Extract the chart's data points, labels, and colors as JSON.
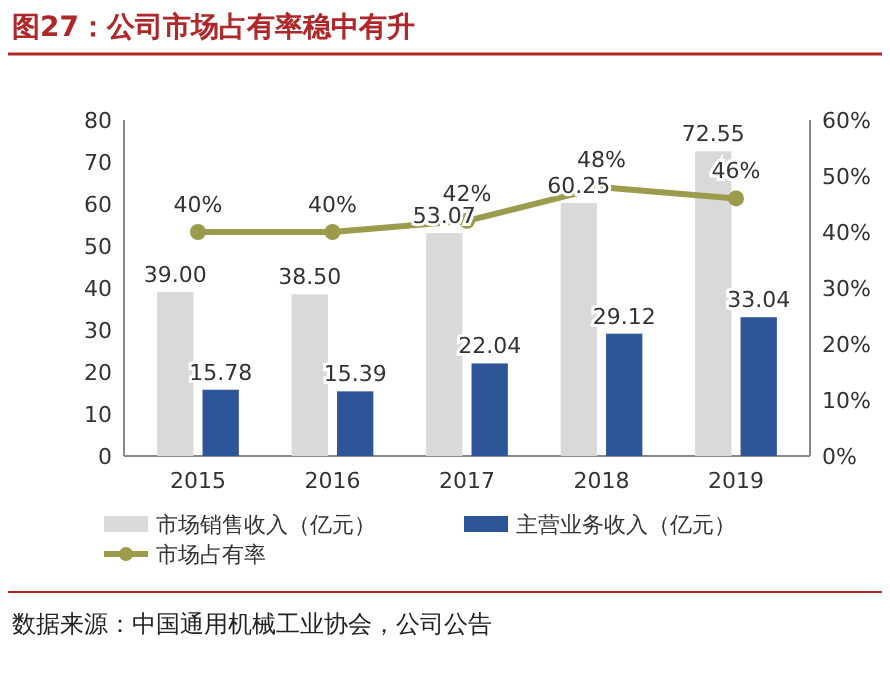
{
  "chart_data": {
    "type": "bar",
    "title": "图27：公司市场占有率稳中有升",
    "categories": [
      "2015",
      "2016",
      "2017",
      "2018",
      "2019"
    ],
    "series": [
      {
        "name": "市场销售收入（亿元）",
        "color": "#d9d9d9",
        "values": [
          39.0,
          38.5,
          53.07,
          60.25,
          72.55
        ],
        "value_labels": [
          "39.00",
          "38.50",
          "53.07",
          "60.25",
          "72.55"
        ]
      },
      {
        "name": "主营业务收入（亿元）",
        "color": "#2e5597",
        "values": [
          15.78,
          15.39,
          22.04,
          29.12,
          33.04
        ],
        "value_labels": [
          "15.78",
          "15.39",
          "22.04",
          "29.12",
          "33.04"
        ]
      },
      {
        "name": "市场占有率",
        "type": "line",
        "axis": "y2",
        "color": "#9c9a4b",
        "marker": "circle",
        "values": [
          40,
          40,
          42,
          48,
          46
        ],
        "value_labels": [
          "40%",
          "40%",
          "42%",
          "48%",
          "46%"
        ]
      }
    ],
    "ylim": [
      0,
      80
    ],
    "yticks": [
      0,
      10,
      20,
      30,
      40,
      50,
      60,
      70,
      80
    ],
    "y2lim": [
      0,
      60
    ],
    "y2ticks": [
      {
        "value": 0,
        "label": "0%"
      },
      {
        "value": 10,
        "label": "10%"
      },
      {
        "value": 20,
        "label": "20%"
      },
      {
        "value": 30,
        "label": "30%"
      },
      {
        "value": 40,
        "label": "40%"
      },
      {
        "value": 50,
        "label": "50%"
      },
      {
        "value": 60,
        "label": "60%"
      }
    ],
    "legend": "bottom",
    "annotations": [
      "数据来源：中国通用机械工业协会，公司公告"
    ]
  }
}
